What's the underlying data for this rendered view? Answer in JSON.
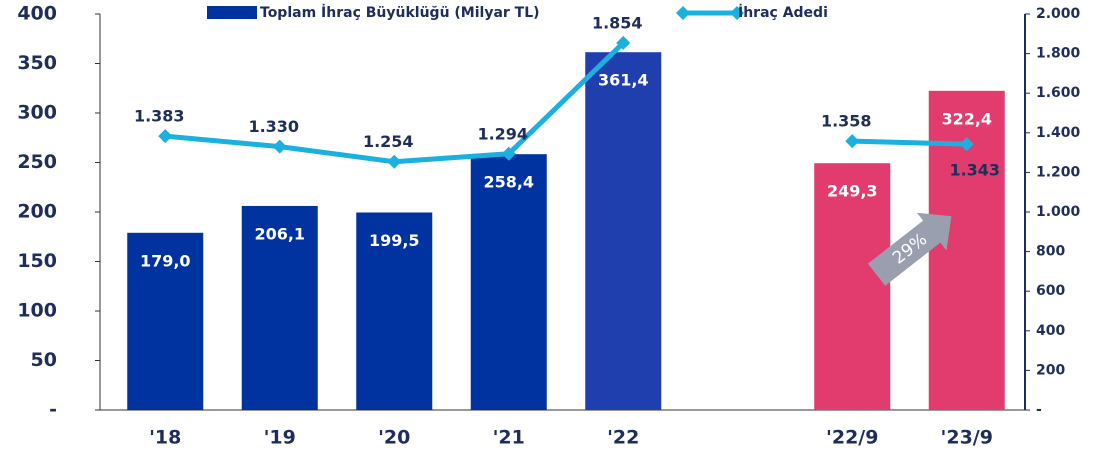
{
  "chart_data": {
    "type": "bar_line",
    "categories": [
      "'18",
      "'19",
      "'20",
      "'21",
      "'22",
      null,
      "'22/9",
      "'23/9"
    ],
    "series": [
      {
        "name": "Toplam İhraç Büyüklüğü (Milyar TL)",
        "type": "bar",
        "color": "#0033a0",
        "colors": [
          "#0033a0",
          "#0033a0",
          "#0033a0",
          "#0033a0",
          "#1f3fae",
          null,
          "#e23c6e",
          "#e23c6e"
        ],
        "values": [
          179.0,
          206.1,
          199.5,
          258.4,
          361.4,
          null,
          249.3,
          322.4
        ],
        "value_labels": [
          "179,0",
          "206,1",
          "199,5",
          "258,4",
          "361,4",
          null,
          "249,3",
          "322,4"
        ]
      },
      {
        "name": "İhraç Adedi",
        "type": "line",
        "axis": "y2",
        "color": "#1ab0e0",
        "values": [
          1383,
          1330,
          1254,
          1294,
          1854,
          null,
          1358,
          1343
        ],
        "value_labels": [
          "1.383",
          "1.330",
          "1.254",
          "1.294",
          "1.854",
          null,
          "1.358",
          "1.343"
        ]
      }
    ],
    "ylim": [
      0,
      400
    ],
    "yticks": [
      {
        "value": 0,
        "label": "-"
      },
      50,
      100,
      150,
      200,
      250,
      300,
      350,
      400
    ],
    "y2lim": [
      0,
      2000
    ],
    "y2ticks": [
      {
        "value": 0,
        "label": "-"
      },
      200,
      400,
      600,
      800,
      {
        "value": 1000,
        "label": "1.000"
      },
      {
        "value": 1200,
        "label": "1.200"
      },
      {
        "value": 1400,
        "label": "1.400"
      },
      {
        "value": 1600,
        "label": "1.600"
      },
      {
        "value": 1800,
        "label": "1.800"
      },
      {
        "value": 2000,
        "label": "2.000"
      }
    ],
    "annotation": "29%"
  }
}
